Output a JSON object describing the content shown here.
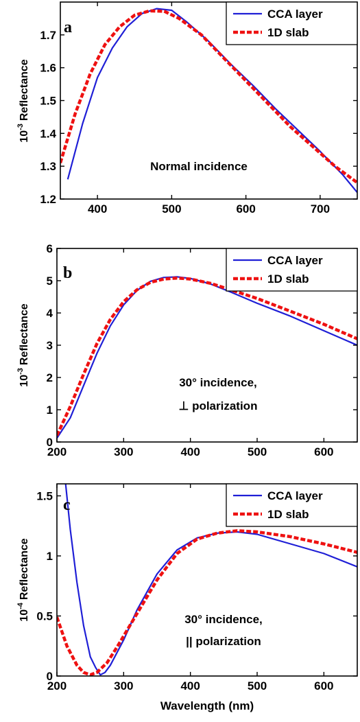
{
  "colors": {
    "cca": "#1f1fd6",
    "slab": "#ee1111",
    "axis": "#000000"
  },
  "xlabel": "Wavelength (nm)",
  "chart_data": [
    {
      "type": "line",
      "panel_label": "a",
      "ylabel_prefix": "10",
      "ylabel_exp": "-3",
      "ylabel_text": "Reflectance",
      "annotation": [
        "Normal incidence"
      ],
      "xlim": [
        350,
        750
      ],
      "ylim": [
        1.2,
        1.8
      ],
      "xticks": [
        400,
        500,
        600,
        700
      ],
      "yticks": [
        1.2,
        1.3,
        1.4,
        1.5,
        1.6,
        1.7
      ],
      "ytick_labels": [
        "1.2",
        "1.3",
        "1.4",
        "1.5",
        "1.6",
        "1.7"
      ],
      "legend_position": "top-right",
      "series": [
        {
          "name": "CCA layer",
          "style": "solid",
          "x": [
            360,
            380,
            400,
            420,
            440,
            460,
            480,
            500,
            520,
            550,
            580,
            610,
            640,
            670,
            700,
            730,
            750
          ],
          "y": [
            1.26,
            1.43,
            1.57,
            1.66,
            1.725,
            1.765,
            1.78,
            1.775,
            1.74,
            1.68,
            1.61,
            1.545,
            1.475,
            1.41,
            1.345,
            1.275,
            1.22
          ]
        },
        {
          "name": "1D slab",
          "style": "dashed",
          "x": [
            350,
            370,
            390,
            410,
            430,
            450,
            470,
            490,
            510,
            540,
            570,
            600,
            630,
            660,
            690,
            720,
            750
          ],
          "y": [
            1.31,
            1.46,
            1.58,
            1.67,
            1.725,
            1.76,
            1.773,
            1.772,
            1.75,
            1.7,
            1.63,
            1.56,
            1.49,
            1.42,
            1.36,
            1.3,
            1.25
          ]
        }
      ]
    },
    {
      "type": "line",
      "panel_label": "b",
      "ylabel_prefix": "10",
      "ylabel_exp": "-3",
      "ylabel_text": "Reflectance",
      "annotation": [
        "30° incidence,",
        "⊥ polarization"
      ],
      "xlim": [
        200,
        650
      ],
      "ylim": [
        0,
        6
      ],
      "xticks": [
        200,
        300,
        400,
        500,
        600
      ],
      "yticks": [
        0,
        1,
        2,
        3,
        4,
        5,
        6
      ],
      "ytick_labels": [
        "0",
        "1",
        "2",
        "3",
        "4",
        "5",
        "6"
      ],
      "legend_position": "top-right",
      "series": [
        {
          "name": "CCA layer",
          "style": "solid",
          "x": [
            200,
            220,
            240,
            260,
            280,
            300,
            320,
            340,
            360,
            380,
            400,
            430,
            460,
            500,
            550,
            600,
            650
          ],
          "y": [
            0.12,
            0.75,
            1.75,
            2.75,
            3.6,
            4.25,
            4.7,
            4.98,
            5.1,
            5.12,
            5.07,
            4.9,
            4.65,
            4.3,
            3.9,
            3.45,
            3.0
          ]
        },
        {
          "name": "1D slab",
          "style": "dashed",
          "x": [
            200,
            220,
            240,
            260,
            280,
            300,
            320,
            340,
            360,
            380,
            400,
            430,
            460,
            500,
            550,
            600,
            650
          ],
          "y": [
            0.2,
            1.1,
            2.1,
            3.05,
            3.8,
            4.35,
            4.72,
            4.95,
            5.05,
            5.08,
            5.05,
            4.92,
            4.72,
            4.45,
            4.05,
            3.65,
            3.2
          ]
        }
      ]
    },
    {
      "type": "line",
      "panel_label": "c",
      "ylabel_prefix": "10",
      "ylabel_exp": "-4",
      "ylabel_text": "Reflectance",
      "annotation": [
        "30° incidence,",
        "|| polarization"
      ],
      "xlim": [
        200,
        650
      ],
      "ylim": [
        0,
        1.6
      ],
      "xticks": [
        200,
        300,
        400,
        500,
        600
      ],
      "yticks": [
        0,
        0.5,
        1,
        1.5
      ],
      "ytick_labels": [
        "0",
        "0.5",
        "1",
        "1.5"
      ],
      "legend_position": "top-right",
      "series": [
        {
          "name": "CCA layer",
          "style": "solid",
          "x": [
            213,
            220,
            230,
            240,
            250,
            258,
            265,
            272,
            280,
            300,
            320,
            350,
            380,
            410,
            440,
            470,
            500,
            550,
            600,
            650
          ],
          "y": [
            1.6,
            1.22,
            0.78,
            0.42,
            0.16,
            0.07,
            0.01,
            0.03,
            0.09,
            0.3,
            0.55,
            0.85,
            1.05,
            1.15,
            1.19,
            1.2,
            1.18,
            1.1,
            1.02,
            0.91
          ]
        },
        {
          "name": "1D slab",
          "style": "dashed",
          "x": [
            200,
            215,
            230,
            240,
            250,
            260,
            275,
            290,
            320,
            350,
            380,
            410,
            440,
            470,
            500,
            550,
            600,
            650
          ],
          "y": [
            0.49,
            0.25,
            0.09,
            0.03,
            0.01,
            0.03,
            0.11,
            0.24,
            0.52,
            0.8,
            1.02,
            1.14,
            1.19,
            1.21,
            1.2,
            1.16,
            1.1,
            1.03
          ]
        }
      ]
    }
  ],
  "legend": {
    "entries": [
      "CCA layer",
      "1D slab"
    ]
  }
}
